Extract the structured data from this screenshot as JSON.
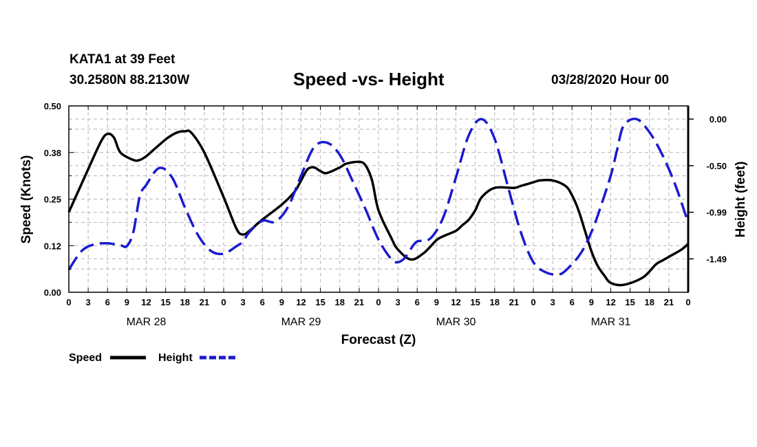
{
  "header": {
    "station": "KATA1 at 39 Feet",
    "coords": "30.2580N 88.2130W",
    "title": "Speed -vs- Height",
    "datetime": "03/28/2020 Hour 00"
  },
  "legend": {
    "speed_label": "Speed",
    "height_label": "Height"
  },
  "colors": {
    "speed": "#000000",
    "height": "#1a1ad0",
    "grid": "#b4b4b4"
  },
  "chart_data": {
    "type": "line",
    "xlabel": "Forecast (Z)",
    "ylabel_left": "Speed (Knots)",
    "ylabel_right": "Height (feet)",
    "xlim": [
      0,
      96
    ],
    "ylim_left": [
      0,
      0.5
    ],
    "ylim_right": [
      -1.84,
      0.14
    ],
    "left_ticks": [
      0,
      0.125,
      0.25,
      0.375,
      0.5
    ],
    "left_tick_labels": [
      "0.00",
      "0.12",
      "0.25",
      "0.38",
      "0.50"
    ],
    "right_ticks": [
      0.0,
      -0.495,
      -0.99,
      -1.485
    ],
    "right_tick_labels": [
      "0.00",
      "-0.50",
      "-0.99",
      "-1.49"
    ],
    "x_tick_hours": [
      0,
      3,
      6,
      9,
      12,
      15,
      18,
      21,
      24,
      27,
      30,
      33,
      36,
      39,
      42,
      45,
      48,
      51,
      54,
      57,
      60,
      63,
      66,
      69,
      72,
      75,
      78,
      81,
      84,
      87,
      90,
      93,
      96
    ],
    "x_tick_labels": [
      "0",
      "3",
      "6",
      "9",
      "12",
      "15",
      "18",
      "21",
      "0",
      "3",
      "6",
      "9",
      "12",
      "15",
      "18",
      "21",
      "0",
      "3",
      "6",
      "9",
      "12",
      "15",
      "18",
      "21",
      "0",
      "3",
      "6",
      "9",
      "12",
      "15",
      "18",
      "21",
      "0"
    ],
    "date_labels": [
      {
        "hour": 12,
        "label": "MAR 28"
      },
      {
        "hour": 36,
        "label": "MAR 29"
      },
      {
        "hour": 60,
        "label": "MAR 30"
      },
      {
        "hour": 84,
        "label": "MAR 31"
      }
    ],
    "series": [
      {
        "name": "Speed",
        "axis": "left",
        "style": "solid",
        "x": [
          0,
          3,
          5,
          6,
          7,
          8,
          10,
          11,
          12,
          13,
          15,
          16,
          17,
          18,
          19,
          21,
          24,
          26,
          27,
          28,
          30,
          33,
          35,
          36,
          37,
          38,
          39,
          40,
          42,
          43,
          45,
          46,
          47,
          48,
          50,
          51,
          53,
          55,
          57,
          58,
          60,
          61,
          62,
          63,
          64,
          66,
          69,
          70,
          72,
          73,
          75,
          77,
          78,
          79,
          80,
          81,
          82,
          83,
          84,
          86,
          89,
          91,
          92,
          93,
          95,
          96
        ],
        "y": [
          0.215,
          0.33,
          0.405,
          0.425,
          0.415,
          0.375,
          0.355,
          0.355,
          0.365,
          0.38,
          0.41,
          0.422,
          0.43,
          0.432,
          0.428,
          0.375,
          0.255,
          0.17,
          0.155,
          0.165,
          0.195,
          0.235,
          0.27,
          0.3,
          0.33,
          0.335,
          0.325,
          0.32,
          0.335,
          0.345,
          0.35,
          0.34,
          0.3,
          0.22,
          0.145,
          0.115,
          0.088,
          0.105,
          0.14,
          0.15,
          0.165,
          0.18,
          0.195,
          0.22,
          0.255,
          0.28,
          0.28,
          0.285,
          0.295,
          0.3,
          0.3,
          0.285,
          0.26,
          0.22,
          0.165,
          0.11,
          0.07,
          0.045,
          0.025,
          0.02,
          0.04,
          0.075,
          0.085,
          0.095,
          0.115,
          0.13
        ]
      },
      {
        "name": "Height",
        "axis": "right",
        "style": "dashed",
        "x": [
          0,
          2,
          4,
          6,
          8,
          9,
          10,
          11,
          12,
          14,
          16,
          18,
          20,
          22,
          24,
          26,
          27,
          28,
          30,
          32,
          34,
          36,
          38,
          40,
          42,
          44,
          46,
          48,
          50,
          51,
          52,
          53,
          54,
          56,
          58,
          60,
          62,
          64,
          66,
          68,
          70,
          72,
          74,
          76,
          77,
          78,
          79,
          80,
          81,
          82,
          84,
          85,
          86,
          88,
          90,
          92,
          94,
          96
        ],
        "y": [
          -1.6,
          -1.4,
          -1.33,
          -1.32,
          -1.34,
          -1.35,
          -1.2,
          -0.82,
          -0.7,
          -0.52,
          -0.62,
          -0.94,
          -1.23,
          -1.4,
          -1.43,
          -1.35,
          -1.3,
          -1.2,
          -1.08,
          -1.09,
          -0.93,
          -0.6,
          -0.3,
          -0.25,
          -0.38,
          -0.66,
          -0.96,
          -1.28,
          -1.49,
          -1.52,
          -1.48,
          -1.38,
          -1.3,
          -1.27,
          -1.05,
          -0.62,
          -0.17,
          0.0,
          -0.21,
          -0.7,
          -1.19,
          -1.52,
          -1.63,
          -1.65,
          -1.61,
          -1.54,
          -1.46,
          -1.35,
          -1.2,
          -1.02,
          -0.6,
          -0.32,
          -0.07,
          0.0,
          -0.14,
          -0.38,
          -0.7,
          -1.1
        ]
      }
    ]
  }
}
